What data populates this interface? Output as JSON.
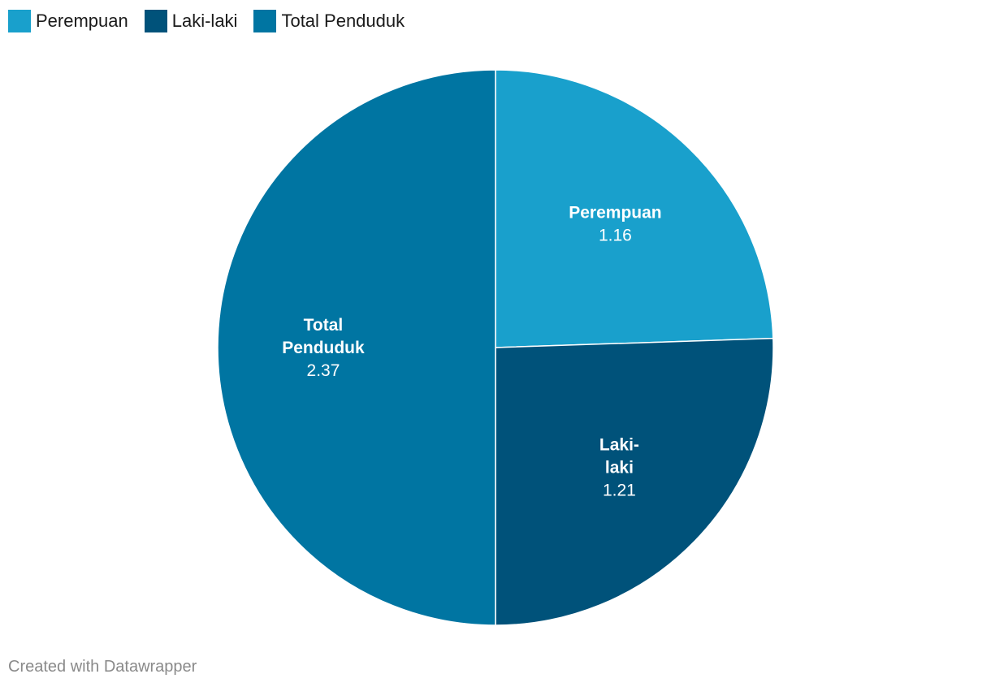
{
  "chart_data": {
    "type": "pie",
    "categories": [
      "Perempuan",
      "Laki-laki",
      "Total Penduduk"
    ],
    "values": [
      1.16,
      1.21,
      2.37
    ],
    "colors": [
      "#19a0cc",
      "#00527a",
      "#0075a2"
    ],
    "legend": "top-left",
    "slice_labels": [
      {
        "name_lines": [
          "Perempuan"
        ],
        "value": "1.16"
      },
      {
        "name_lines": [
          "Laki-",
          "laki"
        ],
        "value": "1.21"
      },
      {
        "name_lines": [
          "Total",
          "Penduduk"
        ],
        "value": "2.37"
      }
    ]
  },
  "legend_items": [
    {
      "label": "Perempuan",
      "color": "#19a0cc"
    },
    {
      "label": "Laki-laki",
      "color": "#00527a"
    },
    {
      "label": "Total Penduduk",
      "color": "#0075a2"
    }
  ],
  "footer": {
    "credit": "Created with Datawrapper"
  }
}
